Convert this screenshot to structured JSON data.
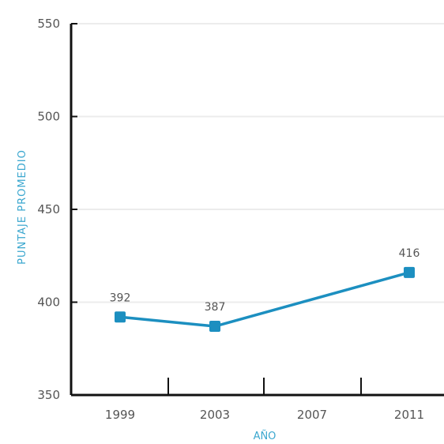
{
  "chart_data": {
    "type": "line",
    "title": "",
    "ylabel": "PUNTAJE PROMEDIO",
    "xlabel": "AÑO",
    "categories": [
      "1999",
      "2003",
      "2007",
      "2011"
    ],
    "ylim": [
      350,
      550
    ],
    "yticks": [
      350,
      400,
      450,
      500,
      550
    ],
    "grid": true,
    "series": [
      {
        "values": [
          392,
          387,
          null,
          416
        ],
        "labels": [
          "392",
          "387",
          "",
          "416"
        ],
        "color": "#1c8fc0"
      }
    ]
  }
}
